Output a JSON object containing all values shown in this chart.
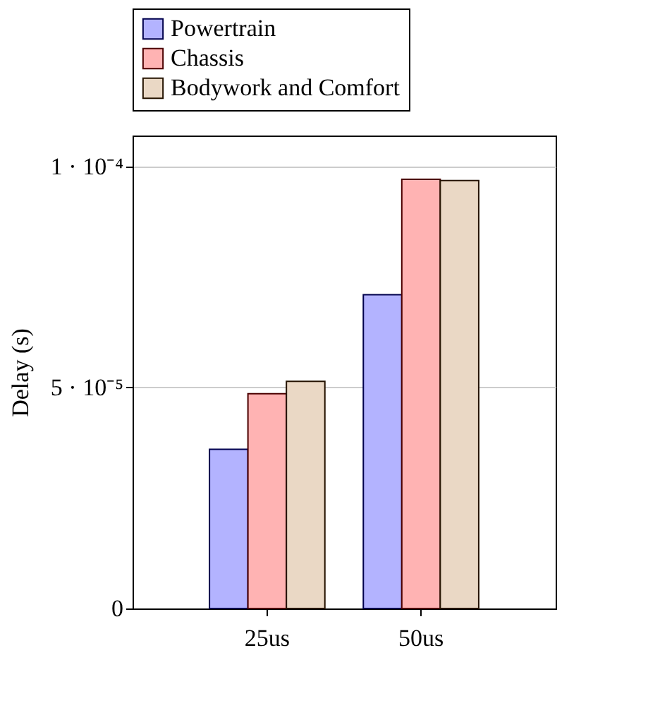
{
  "chart_data": {
    "type": "bar",
    "ylabel": "Delay (s)",
    "categories": [
      "25us",
      "50us"
    ],
    "series": [
      {
        "name": "Powertrain",
        "color": "#b3b3ff",
        "values": [
          3.6e-05,
          7.1e-05
        ]
      },
      {
        "name": "Chassis",
        "color": "#ffb3b3",
        "values": [
          4.86e-05,
          9.71e-05
        ]
      },
      {
        "name": "Bodywork and Comfort",
        "color": "#ead8c5",
        "values": [
          5.14e-05,
          9.68e-05
        ]
      }
    ],
    "ylim": [
      0,
      0.000107
    ],
    "yticks": [
      0,
      {
        "value": 5e-05,
        "label": "5 · 10⁻⁵"
      },
      {
        "value": 0.0001,
        "label": "1 · 10⁻⁴"
      }
    ],
    "grid": "y",
    "legend": "top"
  }
}
